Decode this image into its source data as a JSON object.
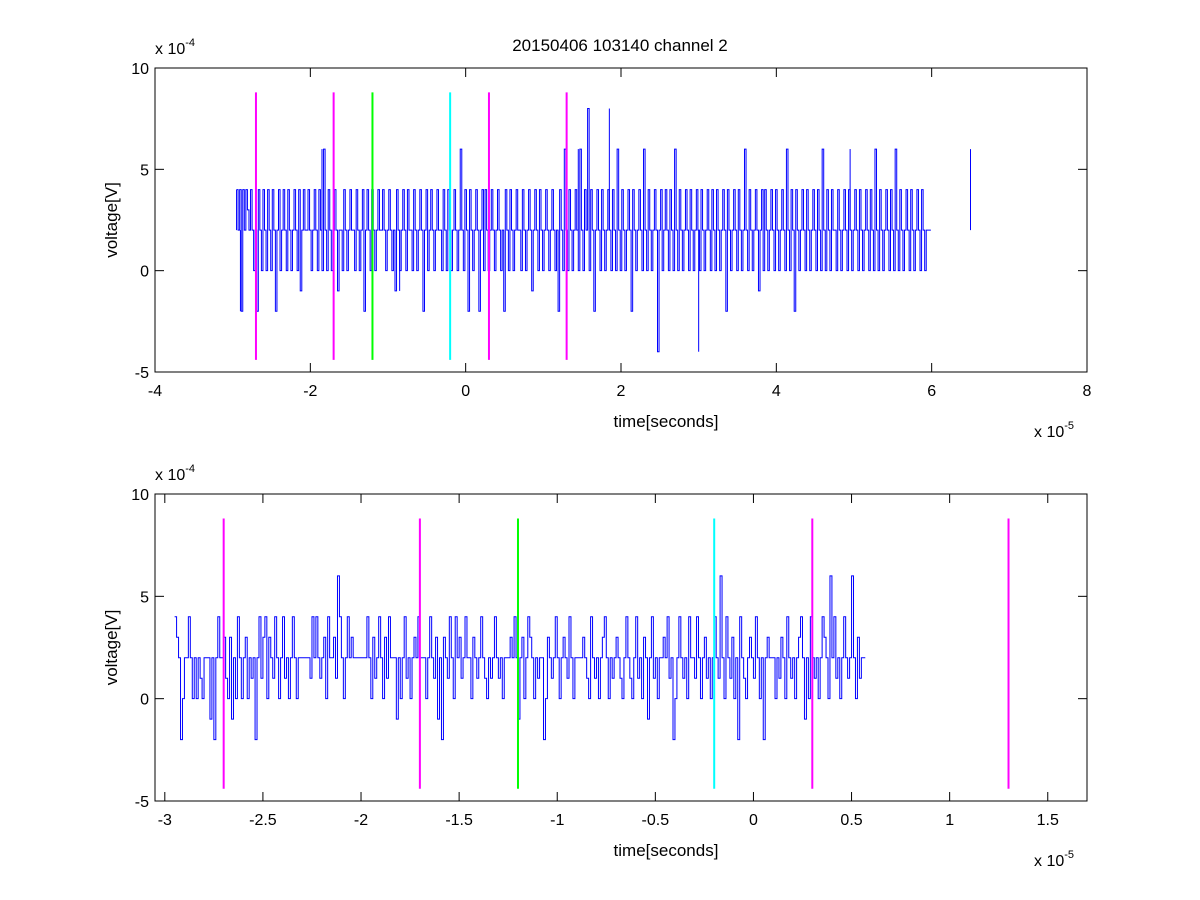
{
  "colors": {
    "signal": "#0000ff",
    "magenta": "#ff00ff",
    "green": "#00ff00",
    "cyan": "#00ffff",
    "background": "#ffffff",
    "axes": "#000000"
  },
  "figure": {
    "title": "20150406 103140 channel 2"
  },
  "chart_data": [
    {
      "type": "line",
      "title": "20150406 103140 channel 2",
      "xlabel": "time[seconds]",
      "ylabel": "voltage[V]",
      "x_exponent": "x 10",
      "x_exponent_power": "-5",
      "y_exponent": "x 10",
      "y_exponent_power": "-4",
      "xlim": [
        -4,
        8
      ],
      "ylim": [
        -5,
        10
      ],
      "xticks": [
        -4,
        -2,
        0,
        2,
        4,
        6,
        8
      ],
      "xtick_labels": [
        "-4",
        "-2",
        "0",
        "2",
        "4",
        "6",
        "8"
      ],
      "yticks": [
        -5,
        0,
        5,
        10
      ],
      "ytick_labels": [
        "-5",
        "0",
        "5",
        "10"
      ],
      "grid": false,
      "series": [
        {
          "color": "#0000ff",
          "x_start": -2.95,
          "x_step": 0.02,
          "y": [
            4,
            2,
            4,
            -2,
            4,
            2,
            4,
            3,
            2,
            4,
            2,
            0,
            2,
            -2,
            4,
            2,
            0,
            4,
            2,
            0,
            4,
            2,
            0,
            4,
            2,
            -2,
            2,
            4,
            0,
            2,
            4,
            2,
            0,
            4,
            2,
            0,
            2,
            4,
            2,
            0,
            4,
            -1,
            2,
            4,
            2,
            2,
            4,
            2,
            0,
            2,
            4,
            2,
            0,
            4,
            2,
            0,
            6,
            2,
            0,
            4,
            2,
            0,
            2,
            4,
            2,
            -1,
            2,
            2,
            0,
            4,
            2,
            0,
            2,
            4,
            2,
            2,
            0,
            4,
            2,
            0,
            2,
            4,
            -2,
            2,
            4,
            2,
            0,
            4,
            2,
            0,
            2,
            4,
            2,
            2,
            4,
            2,
            0,
            2,
            4,
            2,
            0,
            2,
            -1,
            4,
            2,
            0,
            2,
            4,
            2,
            0,
            4,
            2,
            2,
            0,
            4,
            2,
            0,
            2,
            4,
            2,
            -2,
            2,
            4,
            0,
            2,
            4,
            2,
            0,
            2,
            4,
            2,
            2,
            0,
            4,
            2,
            0,
            4,
            2,
            0,
            2,
            4,
            2,
            0,
            2,
            6,
            2,
            0,
            4,
            2,
            -2,
            4,
            2,
            0,
            2,
            4,
            2,
            -2,
            2,
            4,
            0,
            4,
            2,
            0,
            2,
            4,
            2,
            0,
            2,
            4,
            2,
            0,
            2,
            -2,
            4,
            2,
            0,
            4,
            2,
            0,
            2,
            4,
            2,
            2,
            0,
            4,
            2,
            0,
            2,
            4,
            2,
            -1,
            2,
            4,
            2,
            0,
            4,
            2,
            0,
            2,
            4,
            2,
            0,
            2,
            4,
            2,
            0,
            2,
            -2,
            4,
            2,
            0,
            6,
            2,
            0,
            4,
            2,
            0,
            2,
            4,
            2,
            0,
            6,
            2,
            0,
            4,
            2,
            8,
            0,
            4,
            2,
            -2,
            2,
            4,
            2,
            0,
            4,
            2,
            0,
            2,
            4,
            2,
            0,
            4,
            2,
            0,
            6,
            2,
            0,
            4,
            2,
            0,
            2,
            4,
            2,
            -2,
            4,
            2,
            0,
            2,
            4,
            2,
            0,
            6,
            2,
            0,
            4,
            2,
            0,
            2,
            4,
            2,
            -4,
            2,
            4,
            0,
            2,
            4,
            2,
            0,
            4,
            2,
            0,
            6,
            2,
            0,
            4,
            2,
            0,
            2,
            4,
            2,
            0,
            4,
            2,
            0,
            2,
            4,
            2,
            0,
            4,
            2,
            0,
            2,
            4,
            2,
            0,
            4,
            2,
            0,
            4,
            2,
            0,
            2,
            4,
            2,
            -2,
            4,
            2,
            0,
            2,
            4,
            2,
            0,
            4,
            2,
            0,
            2,
            6,
            2,
            0,
            4,
            2,
            0,
            2,
            4,
            2,
            -1,
            2,
            4,
            0,
            4,
            2,
            0,
            2,
            4,
            2,
            0,
            4,
            2,
            0,
            2,
            4,
            2,
            0,
            6,
            2,
            0,
            4,
            2,
            -2,
            4,
            2,
            0,
            2,
            4,
            2,
            0,
            4,
            2,
            0,
            2,
            4,
            2,
            0,
            4,
            2,
            0,
            6,
            2,
            0,
            4,
            2,
            0,
            4,
            2,
            2,
            0,
            4,
            2,
            0,
            2,
            4,
            2,
            0,
            4,
            2,
            0,
            2,
            4,
            2,
            0,
            4,
            2,
            0,
            2,
            4,
            2,
            0,
            4,
            2,
            0,
            6,
            2,
            0,
            4,
            2,
            0,
            2,
            4,
            2,
            0,
            4,
            2,
            0,
            6,
            2,
            0,
            4,
            2,
            0,
            2,
            4,
            2,
            0,
            4,
            2,
            0,
            2,
            4,
            2,
            0,
            4,
            2,
            0,
            2,
            2,
            2,
            2
          ],
          "y_overrides": [
            {
              "x": -2.95,
              "y": 4
            },
            {
              "x": -2.9,
              "y": -2
            },
            {
              "x": -1.85,
              "y": 6
            },
            {
              "x": -0.85,
              "y": -1
            },
            {
              "x": 1.45,
              "y": 6
            },
            {
              "x": 1.85,
              "y": 8
            },
            {
              "x": 3.0,
              "y": -4
            },
            {
              "x": 4.95,
              "y": 6
            },
            {
              "x": 6.5,
              "y": 6
            },
            {
              "x": 7.0,
              "y": 2
            }
          ]
        }
      ],
      "markers": [
        {
          "x": -2.7,
          "color": "#ff00ff"
        },
        {
          "x": -1.7,
          "color": "#ff00ff"
        },
        {
          "x": -1.2,
          "color": "#00ff00"
        },
        {
          "x": -0.2,
          "color": "#00ffff"
        },
        {
          "x": 0.3,
          "color": "#ff00ff"
        },
        {
          "x": 1.3,
          "color": "#ff00ff"
        }
      ],
      "marker_range": [
        -4.4,
        8.8
      ]
    },
    {
      "type": "line",
      "title": "",
      "xlabel": "time[seconds]",
      "ylabel": "voltage[V]",
      "x_exponent": "x 10",
      "x_exponent_power": "-5",
      "y_exponent": "x 10",
      "y_exponent_power": "-4",
      "xlim": [
        -3.05,
        1.7
      ],
      "ylim": [
        -5,
        10
      ],
      "xticks": [
        -3,
        -2.5,
        -2,
        -1.5,
        -1,
        -0.5,
        0,
        0.5,
        1,
        1.5
      ],
      "xtick_labels": [
        "-3",
        "-2.5",
        "-2",
        "-1.5",
        "-1",
        "-0.5",
        "0",
        "0.5",
        "1",
        "1.5"
      ],
      "yticks": [
        -5,
        0,
        5,
        10
      ],
      "ytick_labels": [
        "-5",
        "0",
        "5",
        "10"
      ],
      "grid": false,
      "series": [
        {
          "color": "#0000ff",
          "x_start": -2.95,
          "x_step": 0.01,
          "y": [
            4,
            3,
            2,
            -2,
            0,
            2,
            2,
            4,
            2,
            0,
            2,
            0,
            2,
            1,
            0,
            2,
            2,
            2,
            -1,
            2,
            -2,
            2,
            4,
            2,
            2,
            3,
            1,
            0,
            3,
            -1,
            2,
            0,
            4,
            2,
            0,
            2,
            3,
            0,
            2,
            1,
            2,
            -2,
            2,
            4,
            1,
            3,
            4,
            0,
            3,
            2,
            1,
            4,
            2,
            0,
            2,
            4,
            1,
            2,
            0,
            2,
            4,
            2,
            0,
            2,
            2,
            2,
            2,
            2,
            2,
            1,
            4,
            2,
            4,
            2,
            1,
            2,
            3,
            0,
            4,
            2,
            2,
            3,
            1,
            6,
            4,
            2,
            0,
            2,
            4,
            2,
            3,
            2,
            2,
            2,
            2,
            2,
            2,
            2,
            4,
            2,
            0,
            3,
            1,
            2,
            4,
            2,
            0,
            3,
            1,
            4,
            2,
            2,
            2,
            -1,
            2,
            0,
            2,
            4,
            1,
            2,
            0,
            2,
            3,
            2,
            4,
            2,
            2,
            2,
            0,
            2,
            4,
            2,
            1,
            3,
            -1,
            2,
            -2,
            3,
            2,
            1,
            4,
            2,
            0,
            4,
            2,
            3,
            1,
            2,
            4,
            2,
            2,
            0,
            3,
            2,
            1,
            2,
            4,
            2,
            1,
            0,
            2,
            1,
            2,
            4,
            2,
            1,
            2,
            0,
            2,
            2,
            2,
            3,
            2,
            4,
            2,
            -1,
            2,
            3,
            0,
            2,
            4,
            3,
            2,
            0,
            2,
            1,
            2,
            2,
            -2,
            0,
            3,
            2,
            1,
            2,
            4,
            2,
            0,
            2,
            3,
            2,
            1,
            4,
            2,
            0,
            2,
            2,
            2,
            2,
            3,
            2,
            1,
            0,
            4,
            2,
            1,
            2,
            0,
            2,
            3,
            4,
            2,
            0,
            2,
            1,
            2,
            3,
            2,
            1,
            0,
            2,
            4,
            2,
            1,
            0,
            2,
            4,
            1,
            2,
            0,
            3,
            2,
            -1,
            2,
            4,
            1,
            2,
            0,
            2,
            2,
            3,
            2,
            4,
            1,
            2,
            -2,
            0,
            2,
            4,
            2,
            1,
            2,
            0,
            4,
            2,
            2,
            1,
            4,
            2,
            0,
            2,
            3,
            1,
            2,
            0,
            2,
            4,
            2,
            1,
            6,
            2,
            0,
            4,
            2,
            1,
            3,
            0,
            2,
            -2,
            4,
            2,
            1,
            0,
            2,
            3,
            2,
            1,
            4,
            2,
            0,
            2,
            -2,
            2,
            3,
            2,
            2,
            2,
            0,
            2,
            1,
            3,
            2,
            0,
            4,
            2,
            1,
            2,
            0,
            2,
            3,
            4,
            2,
            -1,
            2,
            0,
            4,
            2,
            1,
            2,
            0,
            2,
            4,
            3,
            2,
            0,
            6,
            2,
            4,
            1,
            2,
            0,
            2,
            4,
            2,
            1,
            2,
            6,
            2,
            0,
            3,
            1,
            2,
            2,
            2
          ],
          "y_overrides": []
        }
      ],
      "markers": [
        {
          "x": -2.7,
          "color": "#ff00ff"
        },
        {
          "x": -1.7,
          "color": "#ff00ff"
        },
        {
          "x": -1.2,
          "color": "#00ff00"
        },
        {
          "x": -0.2,
          "color": "#00ffff"
        },
        {
          "x": 0.3,
          "color": "#ff00ff"
        },
        {
          "x": 1.3,
          "color": "#ff00ff"
        }
      ],
      "marker_range": [
        -4.4,
        8.8
      ]
    }
  ]
}
